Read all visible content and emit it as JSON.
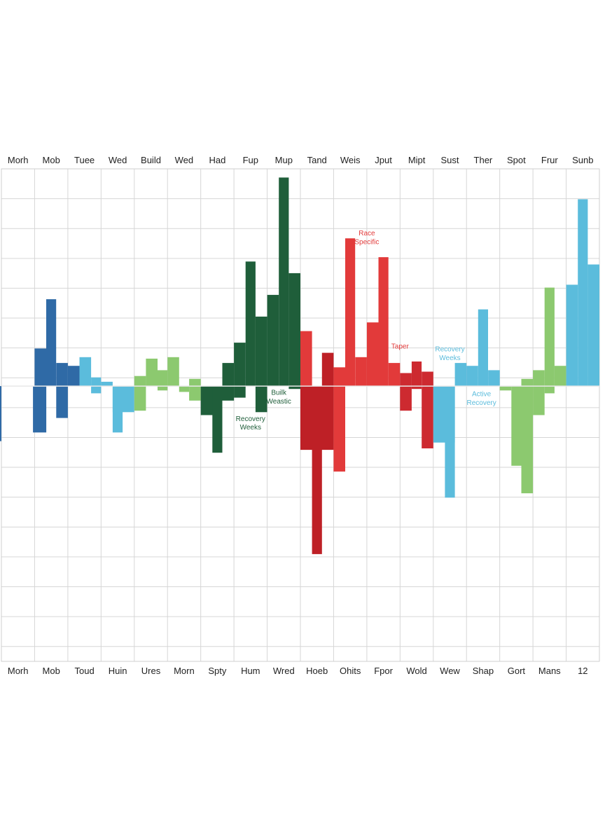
{
  "chart_data": {
    "type": "bar",
    "top_labels": [
      "Morh",
      "Mob",
      "Tuee",
      "Wed",
      "Build",
      "Wed",
      "Had",
      "Fup",
      "Mup",
      "Tand",
      "Weis",
      "Jput",
      "Mipt",
      "Sust",
      "Ther",
      "Spot",
      "Frur",
      "Sunb"
    ],
    "bottom_labels": [
      "Morh",
      "Mob",
      "Toud",
      "Huin",
      "Ures",
      "Morn",
      "Spty",
      "Hum",
      "Wred",
      "Hoeb",
      "Ohits",
      "Fpor",
      "Wold",
      "Wew",
      "Shap",
      "Gort",
      "Mans",
      "12"
    ],
    "columns": 18,
    "grid": true,
    "baseline": 0,
    "ylim": [
      -9.5,
      7.5
    ],
    "colors": {
      "base": "#2f6aa6",
      "recovery": "#5bbcdc",
      "maintenance": "#8cc96f",
      "build": "#1f5e3a",
      "race": "#e23a3a",
      "race_dark": "#be2026",
      "taper": "#cd2a30"
    },
    "series": [
      {
        "color": "base",
        "bars": [
          {
            "col": 0,
            "from": -0.8,
            "to": 0,
            "v": -1.9
          },
          {
            "col": 0,
            "from": -0.5,
            "to": -0.1,
            "v": -4.6
          },
          {
            "col": 1,
            "from": 0.0,
            "to": 0.35,
            "v": 1.3
          },
          {
            "col": 1,
            "from": -0.05,
            "to": 0.35,
            "v": -1.6
          },
          {
            "col": 1,
            "from": 0.35,
            "to": 0.65,
            "v": 3.0
          },
          {
            "col": 1,
            "from": 0.65,
            "to": 1.0,
            "v": 0.8
          },
          {
            "col": 1,
            "from": 0.65,
            "to": 1.0,
            "v": -1.1
          },
          {
            "col": 2,
            "from": 0.0,
            "to": 0.35,
            "v": 0.7
          }
        ]
      },
      {
        "color": "recovery",
        "bars": [
          {
            "col": 2,
            "from": 0.35,
            "to": 0.7,
            "v": 1.0
          },
          {
            "col": 2,
            "from": 0.7,
            "to": 1.0,
            "v": 0.3
          },
          {
            "col": 2,
            "from": 0.7,
            "to": 1.0,
            "v": -0.25
          },
          {
            "col": 3,
            "from": 0.0,
            "to": 0.35,
            "v": 0.15
          },
          {
            "col": 3,
            "from": 0.35,
            "to": 1.0,
            "v": -0.9
          },
          {
            "col": 3,
            "from": 0.35,
            "to": 0.65,
            "v": -1.6
          }
        ]
      },
      {
        "color": "maintenance",
        "bars": [
          {
            "col": 4,
            "from": 0.0,
            "to": 0.35,
            "v": 0.35
          },
          {
            "col": 4,
            "from": 0.0,
            "to": 0.35,
            "v": -0.85
          },
          {
            "col": 4,
            "from": 0.35,
            "to": 0.7,
            "v": 0.95
          },
          {
            "col": 4,
            "from": 0.7,
            "to": 1.0,
            "v": 0.55
          },
          {
            "col": 4,
            "from": 0.7,
            "to": 1.0,
            "v": -0.15
          },
          {
            "col": 5,
            "from": 0.0,
            "to": 0.35,
            "v": 1.0
          },
          {
            "col": 5,
            "from": 0.35,
            "to": 0.65,
            "v": -0.2
          },
          {
            "col": 5,
            "from": 0.65,
            "to": 1.0,
            "v": 0.25
          },
          {
            "col": 5,
            "from": 0.65,
            "to": 1.0,
            "v": -0.5
          }
        ]
      },
      {
        "color": "build",
        "bars": [
          {
            "col": 6,
            "from": 0.0,
            "to": 0.65,
            "v": -1.0
          },
          {
            "col": 6,
            "from": 0.35,
            "to": 0.65,
            "v": -2.3
          },
          {
            "col": 6,
            "from": 0.65,
            "to": 1.0,
            "v": 0.8
          },
          {
            "col": 6,
            "from": 0.65,
            "to": 1.0,
            "v": -0.5
          },
          {
            "col": 7,
            "from": 0.0,
            "to": 0.35,
            "v": 1.5
          },
          {
            "col": 7,
            "from": 0.0,
            "to": 0.35,
            "v": -0.4
          },
          {
            "col": 7,
            "from": 0.35,
            "to": 0.65,
            "v": 4.3
          },
          {
            "col": 7,
            "from": 0.65,
            "to": 1.0,
            "v": 2.4
          },
          {
            "col": 7,
            "from": 0.65,
            "to": 1.0,
            "v": -0.9
          },
          {
            "col": 8,
            "from": 0.0,
            "to": 0.35,
            "v": 3.15
          },
          {
            "col": 8,
            "from": 0.35,
            "to": 0.65,
            "v": 7.2
          },
          {
            "col": 8,
            "from": 0.65,
            "to": 1.0,
            "v": 3.9
          },
          {
            "col": 8,
            "from": 0.65,
            "to": 1.0,
            "v": -0.1
          }
        ]
      },
      {
        "color": "race_dark",
        "bars": [
          {
            "col": 9,
            "from": 0.0,
            "to": 1.0,
            "v": -2.2
          },
          {
            "col": 9,
            "from": 0.35,
            "to": 0.65,
            "v": -5.8
          },
          {
            "col": 9,
            "from": 0.65,
            "to": 1.0,
            "v": 1.15
          }
        ]
      },
      {
        "color": "race",
        "bars": [
          {
            "col": 9,
            "from": 0.0,
            "to": 0.35,
            "v": 1.9
          },
          {
            "col": 10,
            "from": 0.0,
            "to": 0.35,
            "v": 0.65
          },
          {
            "col": 10,
            "from": 0.0,
            "to": 0.35,
            "v": -2.95
          },
          {
            "col": 10,
            "from": 0.35,
            "to": 0.65,
            "v": 5.1
          },
          {
            "col": 10,
            "from": 0.65,
            "to": 1.0,
            "v": 1.0
          },
          {
            "col": 11,
            "from": 0.0,
            "to": 0.35,
            "v": 2.2
          },
          {
            "col": 11,
            "from": 0.35,
            "to": 0.65,
            "v": 4.45
          },
          {
            "col": 11,
            "from": 0.65,
            "to": 1.0,
            "v": 0.8
          }
        ]
      },
      {
        "color": "taper",
        "bars": [
          {
            "col": 12,
            "from": 0.0,
            "to": 0.35,
            "v": 0.45
          },
          {
            "col": 12,
            "from": 0.0,
            "to": 0.35,
            "v": -0.85
          },
          {
            "col": 12,
            "from": 0.35,
            "to": 0.65,
            "v": 0.85
          },
          {
            "col": 12,
            "from": 0.35,
            "to": 0.65,
            "v": -0.1
          },
          {
            "col": 12,
            "from": 0.65,
            "to": 1.0,
            "v": 0.5
          },
          {
            "col": 12,
            "from": 0.65,
            "to": 1.0,
            "v": -2.15
          }
        ]
      },
      {
        "color": "recovery",
        "bars": [
          {
            "col": 13,
            "from": 0.0,
            "to": 0.65,
            "v": -1.95
          },
          {
            "col": 13,
            "from": 0.35,
            "to": 0.65,
            "v": -3.85
          },
          {
            "col": 13,
            "from": 0.65,
            "to": 1.0,
            "v": 0.8
          },
          {
            "col": 14,
            "from": 0.0,
            "to": 0.35,
            "v": 0.7
          },
          {
            "col": 14,
            "from": 0.35,
            "to": 0.65,
            "v": 2.65
          },
          {
            "col": 14,
            "from": 0.65,
            "to": 1.0,
            "v": 0.55
          }
        ]
      },
      {
        "color": "maintenance",
        "bars": [
          {
            "col": 15,
            "from": 0.0,
            "to": 0.35,
            "v": -0.15
          },
          {
            "col": 15,
            "from": 0.35,
            "to": 0.65,
            "v": -2.75
          },
          {
            "col": 15,
            "from": 0.65,
            "to": 1.0,
            "v": 0.25
          },
          {
            "col": 15,
            "from": 0.65,
            "to": 1.0,
            "v": -3.7
          },
          {
            "col": 16,
            "from": 0.0,
            "to": 0.35,
            "v": 0.55
          },
          {
            "col": 16,
            "from": 0.0,
            "to": 0.35,
            "v": -1.0
          },
          {
            "col": 16,
            "from": 0.35,
            "to": 0.65,
            "v": 3.4
          },
          {
            "col": 16,
            "from": 0.35,
            "to": 0.65,
            "v": -0.25
          },
          {
            "col": 16,
            "from": 0.65,
            "to": 1.0,
            "v": 0.7
          }
        ]
      },
      {
        "color": "recovery",
        "bars": [
          {
            "col": 17,
            "from": 0.0,
            "to": 0.35,
            "v": 3.5
          },
          {
            "col": 17,
            "from": 0.35,
            "to": 0.65,
            "v": 6.45
          },
          {
            "col": 17,
            "from": 0.65,
            "to": 1.0,
            "v": 4.2
          }
        ]
      }
    ],
    "annotations": [
      {
        "text": "Race",
        "col": 11,
        "offset": 0.0,
        "v": 5.2,
        "color": "race"
      },
      {
        "text": "Specific",
        "col": 11,
        "offset": 0.0,
        "v": 4.9,
        "color": "race"
      },
      {
        "text": "Taper",
        "col": 12,
        "offset": 0.0,
        "v": 1.3,
        "color": "race"
      },
      {
        "text": "Recovery",
        "col": 13,
        "offset": 0.5,
        "v": 1.2,
        "color": "recovery"
      },
      {
        "text": "Weeks",
        "col": 13,
        "offset": 0.5,
        "v": 0.9,
        "color": "recovery"
      },
      {
        "text": "Active",
        "col": 14,
        "offset": 0.45,
        "v": -0.35,
        "color": "recovery"
      },
      {
        "text": "Recovery",
        "col": 14,
        "offset": 0.45,
        "v": -0.65,
        "color": "recovery"
      },
      {
        "text": "Builk",
        "col": 8,
        "offset": 0.35,
        "v": -0.3,
        "color": "build"
      },
      {
        "text": "Weastic",
        "col": 8,
        "offset": 0.35,
        "v": -0.6,
        "color": "build"
      },
      {
        "text": "Recovery",
        "col": 7,
        "offset": 0.5,
        "v": -1.2,
        "color": "build"
      },
      {
        "text": "Weeks",
        "col": 7,
        "offset": 0.5,
        "v": -1.5,
        "color": "build"
      }
    ]
  }
}
